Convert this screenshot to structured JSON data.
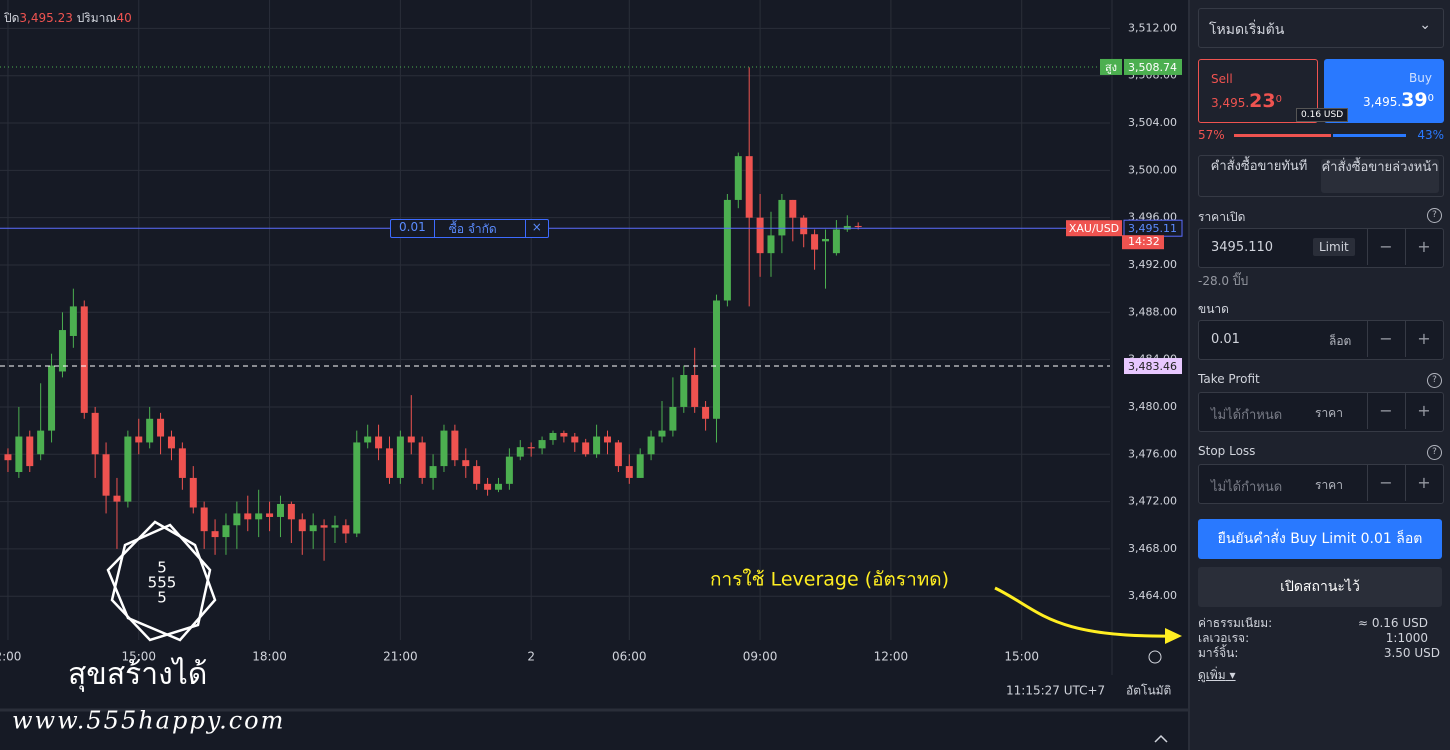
{
  "header": {
    "close_label": "ปิด",
    "close": "3,495.23",
    "volume_label": "ปริมาณ",
    "volume": "40"
  },
  "chart_data": {
    "type": "candlestick",
    "open": [
      3476,
      3474.5,
      3477.5,
      3476,
      3478,
      3483,
      3486,
      3488.5,
      3479.5,
      3476,
      3472.5,
      3472,
      3477.5,
      3477,
      3479,
      3477.5,
      3476.5,
      3474,
      3471.5,
      3469.5,
      3469,
      3470,
      3471,
      3470.5,
      3471,
      3470.7,
      3471.8,
      3470.5,
      3469.5,
      3470,
      3469.8,
      3470,
      3469.3,
      3477,
      3477.5,
      3476.5,
      3474,
      3477.5,
      3477,
      3474,
      3475,
      3478,
      3475.5,
      3475,
      3473.5,
      3473,
      3473.5,
      3475.8,
      3476.6,
      3476.5,
      3477.2,
      3477.8,
      3477.5,
      3477,
      3476,
      3477.5,
      3477,
      3475,
      3474,
      3476,
      3477.5,
      3478,
      3480,
      3482.7,
      3480,
      3479,
      3489,
      3497.5,
      3501.2,
      3496,
      3493,
      3494.5,
      3497.5,
      3496,
      3494.6,
      3494,
      3493,
      3495,
      3495.3
    ],
    "high": [
      3476.5,
      3480,
      3478,
      3482,
      3484.5,
      3488,
      3490,
      3489,
      3480,
      3477,
      3474,
      3478,
      3479,
      3480,
      3479.5,
      3478,
      3477,
      3475,
      3472,
      3470.5,
      3471,
      3472,
      3472.5,
      3473,
      3472,
      3472.5,
      3472,
      3471,
      3471,
      3470.5,
      3470.8,
      3470.5,
      3478,
      3478.5,
      3478.5,
      3477.5,
      3478,
      3481,
      3477.5,
      3476,
      3478.5,
      3478.5,
      3476.5,
      3475.5,
      3474,
      3474,
      3476.5,
      3477.2,
      3477,
      3477.5,
      3478,
      3478,
      3477.8,
      3477.3,
      3478.5,
      3478,
      3477.2,
      3476,
      3476.5,
      3478,
      3480.5,
      3482.5,
      3483.5,
      3485,
      3480.5,
      3489.5,
      3498,
      3501.5,
      3508.7,
      3498,
      3496.5,
      3498,
      3497.5,
      3496.2,
      3495,
      3495,
      3495.8,
      3496.2,
      3495.6
    ],
    "low": [
      3474.5,
      3474,
      3474.5,
      3475.5,
      3477,
      3482.5,
      3485,
      3479,
      3474,
      3471,
      3468,
      3471.5,
      3476,
      3476.5,
      3476,
      3475.5,
      3473,
      3471,
      3468,
      3467.5,
      3467.5,
      3468,
      3469.5,
      3469,
      3469.5,
      3469,
      3468.5,
      3467.5,
      3468,
      3467,
      3468.5,
      3468.5,
      3469,
      3476.5,
      3475.5,
      3473.5,
      3473.5,
      3476,
      3473.5,
      3473,
      3474.5,
      3475,
      3474,
      3473,
      3472.5,
      3472.8,
      3473,
      3475.5,
      3475.8,
      3476,
      3476.8,
      3477,
      3476.2,
      3475.8,
      3475.7,
      3476,
      3474.5,
      3473.5,
      3474,
      3475.5,
      3477,
      3477.5,
      3479.5,
      3479.5,
      3478,
      3477,
      3488.5,
      3496.8,
      3488.5,
      3491,
      3491,
      3493,
      3494,
      3493.5,
      3491.6,
      3490,
      3492.8,
      3494.8,
      3495
    ],
    "close": [
      3475.5,
      3477.5,
      3475,
      3478,
      3483.5,
      3486.5,
      3488.5,
      3479.5,
      3476,
      3472.5,
      3472,
      3477.5,
      3477,
      3479,
      3477.5,
      3476.5,
      3474,
      3471.5,
      3469.5,
      3469,
      3470,
      3471,
      3470.5,
      3471,
      3470.7,
      3471.8,
      3470.5,
      3469.5,
      3470,
      3469.8,
      3470,
      3469.3,
      3477,
      3477.5,
      3476.5,
      3474,
      3477.5,
      3477,
      3474,
      3475,
      3478,
      3475.5,
      3475,
      3473.5,
      3473,
      3473.5,
      3475.8,
      3476.6,
      3476.5,
      3477.2,
      3477.8,
      3477.5,
      3477,
      3476,
      3477.5,
      3477,
      3475,
      3474,
      3476,
      3477.5,
      3478,
      3480,
      3482.7,
      3480,
      3479,
      3489,
      3497.5,
      3501.2,
      3496,
      3493,
      3494.5,
      3497.5,
      3496,
      3494.6,
      3493.3,
      3494.2,
      3495,
      3495.3,
      3495.23
    ],
    "up_color": "#4caf50",
    "down_color": "#ef5350",
    "xlim": [
      -0.73,
      101.1
    ],
    "xticks": [
      {
        "value": 0,
        "label": "2:00"
      },
      {
        "value": 12,
        "label": "15:00"
      },
      {
        "value": 24,
        "label": "18:00"
      },
      {
        "value": 36,
        "label": "21:00"
      },
      {
        "value": 48,
        "label": "2"
      },
      {
        "value": 57,
        "label": "06:00"
      },
      {
        "value": 69,
        "label": "09:00"
      },
      {
        "value": 81,
        "label": "12:00"
      },
      {
        "value": 93,
        "label": "15:00"
      }
    ],
    "ylim": [
      3460.3,
      3514.4
    ],
    "yticks": [
      {
        "value": 3464,
        "label": "3,464.00"
      },
      {
        "value": 3468,
        "label": "3,468.00"
      },
      {
        "value": 3472,
        "label": "3,472.00"
      },
      {
        "value": 3476,
        "label": "3,476.00"
      },
      {
        "value": 3480,
        "label": "3,480.00"
      },
      {
        "value": 3484,
        "label": "3,484.00"
      },
      {
        "value": 3488,
        "label": "3,488.00"
      },
      {
        "value": 3492,
        "label": "3,492.00"
      },
      {
        "value": 3496,
        "label": "3,496.00"
      },
      {
        "value": 3500,
        "label": "3,500.00"
      },
      {
        "value": 3504,
        "label": "3,504.00"
      },
      {
        "value": 3508,
        "label": "3,508.00"
      },
      {
        "value": 3512,
        "label": "3,512.00"
      }
    ],
    "grid": true,
    "levels": [
      {
        "name": "สูง",
        "value": 3508.74,
        "label": "3,508.74",
        "color": "#4caf50"
      },
      {
        "name": "XAU/USD",
        "value": 3495.11,
        "label": "3,495.11",
        "time": "14:32",
        "color": "#5b6cff"
      },
      {
        "value": 3483.46,
        "label": "3,483.46",
        "color": "#ffffff"
      }
    ],
    "order": {
      "size": "0.01",
      "type": "ซื้อ จำกัด",
      "close": "×"
    },
    "annotation": "การใช้ Leverage (อัตราทด)"
  },
  "status": {
    "time": "11:15:27 UTC+7",
    "mode": "อัตโนมัติ"
  },
  "watermark": {
    "logo": [
      "5",
      "555",
      "5"
    ],
    "slogan": "สุขสร้างได้",
    "url": "www.555happy.com"
  },
  "panel": {
    "mode": "โหมดเริ่มต้น",
    "sell": {
      "label": "Sell",
      "price": "3,495.",
      "big": "23",
      "small": "0"
    },
    "buy": {
      "label": "Buy",
      "price": "3,495.",
      "big": "39",
      "small": "0"
    },
    "spread": "0.16 USD",
    "sentiment": {
      "sell": {
        "value": 57,
        "label": "57%"
      },
      "buy": {
        "value": 43,
        "label": "43%"
      }
    },
    "tabs": [
      "คำสั่งซื้อขายทันที",
      "คำสั่งซื้อขายล่วงหน้า"
    ],
    "open_price": {
      "label": "ราคาเปิด",
      "value": "3495.110",
      "kind": "Limit",
      "pips": "-28.0 ปิ๊ป"
    },
    "size": {
      "label": "ขนาด",
      "value": "0.01",
      "unit": "ล็อต"
    },
    "take_profit": {
      "label": "Take Profit",
      "placeholder": "ไม่ได้กำหนด",
      "unit": "ราคา"
    },
    "stop_loss": {
      "label": "Stop Loss",
      "placeholder": "ไม่ได้กำหนด",
      "unit": "ราคา"
    },
    "minus": "−",
    "plus": "+",
    "confirm": "ยืนยันคำสั่ง Buy Limit 0.01 ล็อต",
    "cancel": "เปิดสถานะไว้",
    "info": [
      [
        "ค่าธรรมเนียม:",
        "≈ 0.16 USD"
      ],
      [
        "เลเวอเรจ:",
        "1:1000"
      ],
      [
        "มาร์จิ้น:",
        "3.50 USD"
      ]
    ],
    "more": "ดูเพิ่ม"
  }
}
